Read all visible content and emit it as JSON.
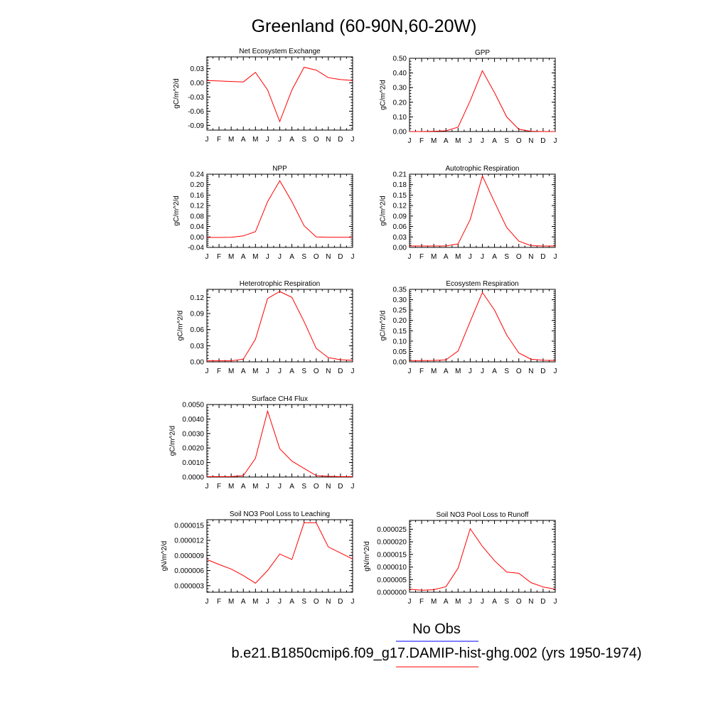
{
  "title": "Greenland (60-90N,60-20W)",
  "months": [
    "J",
    "F",
    "M",
    "A",
    "M",
    "J",
    "J",
    "A",
    "S",
    "O",
    "N",
    "D",
    "J"
  ],
  "legend": {
    "obs_label": "No Obs",
    "obs_color": "#0000ff",
    "model_label": "b.e21.B1850cmip6.f09_g17.DAMIP-hist-ghg.002 (yrs 1950-1974)",
    "model_color": "#ff0000"
  },
  "chart_data": [
    {
      "type": "line",
      "title": "Net Ecosystem Exchange",
      "ylabel": "gC/m^2/d",
      "ylim": [
        -0.1,
        0.055
      ],
      "yticks": [
        -0.09,
        -0.06,
        -0.03,
        0.0,
        0.03
      ],
      "ytick_labels": [
        "-0.09",
        "-0.06",
        "-0.03",
        "0.00",
        "0.03"
      ],
      "x": [
        "J",
        "F",
        "M",
        "A",
        "M",
        "J",
        "J",
        "A",
        "S",
        "O",
        "N",
        "D",
        "J"
      ],
      "series": [
        {
          "values": [
            0.005,
            0.004,
            0.003,
            0.002,
            0.022,
            -0.015,
            -0.082,
            -0.015,
            0.033,
            0.027,
            0.011,
            0.007,
            0.005
          ]
        }
      ]
    },
    {
      "type": "line",
      "title": "GPP",
      "ylabel": "gC/m^2/d",
      "ylim": [
        0.0,
        0.5
      ],
      "yticks": [
        0.0,
        0.1,
        0.2,
        0.3,
        0.4,
        0.5
      ],
      "ytick_labels": [
        "0.00",
        "0.10",
        "0.20",
        "0.30",
        "0.40",
        "0.50"
      ],
      "x": [
        "J",
        "F",
        "M",
        "A",
        "M",
        "J",
        "J",
        "A",
        "S",
        "O",
        "N",
        "D",
        "J"
      ],
      "series": [
        {
          "values": [
            0.0,
            0.0,
            0.002,
            0.005,
            0.03,
            0.21,
            0.415,
            0.265,
            0.1,
            0.015,
            0.002,
            0.0,
            0.0
          ]
        }
      ]
    },
    {
      "type": "line",
      "title": "NPP",
      "ylabel": "gC/m^2/d",
      "ylim": [
        -0.04,
        0.24
      ],
      "yticks": [
        -0.04,
        0.0,
        0.04,
        0.08,
        0.12,
        0.16,
        0.2,
        0.24
      ],
      "ytick_labels": [
        "-0.04",
        "0.00",
        "0.04",
        "0.08",
        "0.12",
        "0.16",
        "0.20",
        "0.24"
      ],
      "x": [
        "J",
        "F",
        "M",
        "A",
        "M",
        "J",
        "J",
        "A",
        "S",
        "O",
        "N",
        "D",
        "J"
      ],
      "series": [
        {
          "values": [
            -0.002,
            -0.002,
            -0.001,
            0.004,
            0.02,
            0.135,
            0.215,
            0.135,
            0.043,
            0.0,
            -0.001,
            -0.001,
            -0.001
          ]
        }
      ]
    },
    {
      "type": "line",
      "title": "Autotrophic Respiration",
      "ylabel": "gC/m^2/d",
      "ylim": [
        0.0,
        0.21
      ],
      "yticks": [
        0.0,
        0.03,
        0.06,
        0.09,
        0.12,
        0.15,
        0.18,
        0.21
      ],
      "ytick_labels": [
        "0.00",
        "0.03",
        "0.06",
        "0.09",
        "0.12",
        "0.15",
        "0.18",
        "0.21"
      ],
      "x": [
        "J",
        "F",
        "M",
        "A",
        "M",
        "J",
        "J",
        "A",
        "S",
        "O",
        "N",
        "D",
        "J"
      ],
      "series": [
        {
          "values": [
            0.004,
            0.004,
            0.004,
            0.004,
            0.01,
            0.08,
            0.205,
            0.13,
            0.057,
            0.018,
            0.005,
            0.004,
            0.004
          ]
        }
      ]
    },
    {
      "type": "line",
      "title": "Heterotrophic Respiration",
      "ylabel": "gC/m^2/d",
      "ylim": [
        0.0,
        0.135
      ],
      "yticks": [
        0.0,
        0.03,
        0.06,
        0.09,
        0.12
      ],
      "ytick_labels": [
        "0.00",
        "0.03",
        "0.06",
        "0.09",
        "0.12"
      ],
      "x": [
        "J",
        "F",
        "M",
        "A",
        "M",
        "J",
        "J",
        "A",
        "S",
        "O",
        "N",
        "D",
        "J"
      ],
      "series": [
        {
          "values": [
            0.002,
            0.002,
            0.002,
            0.005,
            0.042,
            0.118,
            0.131,
            0.12,
            0.075,
            0.025,
            0.008,
            0.004,
            0.003
          ]
        }
      ]
    },
    {
      "type": "line",
      "title": "Ecosystem Respiration",
      "ylabel": "gC/m^2/d",
      "ylim": [
        0.0,
        0.35
      ],
      "yticks": [
        0.0,
        0.05,
        0.1,
        0.15,
        0.2,
        0.25,
        0.3,
        0.35
      ],
      "ytick_labels": [
        "0.00",
        "0.05",
        "0.10",
        "0.15",
        "0.20",
        "0.25",
        "0.30",
        "0.35"
      ],
      "x": [
        "J",
        "F",
        "M",
        "A",
        "M",
        "J",
        "J",
        "A",
        "S",
        "O",
        "N",
        "D",
        "J"
      ],
      "series": [
        {
          "values": [
            0.006,
            0.006,
            0.007,
            0.01,
            0.052,
            0.195,
            0.335,
            0.25,
            0.13,
            0.043,
            0.013,
            0.008,
            0.007
          ]
        }
      ]
    },
    {
      "type": "line",
      "title": "Surface CH4 Flux",
      "ylabel": "gC/m^2/d",
      "ylim": [
        0.0,
        0.005
      ],
      "yticks": [
        0.0,
        0.001,
        0.002,
        0.003,
        0.004,
        0.005
      ],
      "ytick_labels": [
        "0.0000",
        "0.0010",
        "0.0020",
        "0.0030",
        "0.0040",
        "0.0050"
      ],
      "x": [
        "J",
        "F",
        "M",
        "A",
        "M",
        "J",
        "J",
        "A",
        "S",
        "O",
        "N",
        "D",
        "J"
      ],
      "series": [
        {
          "values": [
            3e-05,
            3e-05,
            3e-05,
            0.0001,
            0.0013,
            0.00455,
            0.00195,
            0.0011,
            0.0006,
            0.0001,
            5e-05,
            3e-05,
            3e-05
          ]
        }
      ]
    },
    {
      "type": "line",
      "title": "Soil NO3 Pool Loss to Leaching",
      "ylabel": "gN/m^2/d",
      "ylim": [
        1.7e-06,
        1.61e-05
      ],
      "yticks": [
        3e-06,
        6e-06,
        9e-06,
        1.2e-05,
        1.5e-05
      ],
      "ytick_labels": [
        "0.000003",
        "0.000006",
        "0.000009",
        "0.000012",
        "0.000015"
      ],
      "x": [
        "J",
        "F",
        "M",
        "A",
        "M",
        "J",
        "J",
        "A",
        "S",
        "O",
        "N",
        "D",
        "J"
      ],
      "series": [
        {
          "values": [
            8.2e-06,
            7.2e-06,
            6.3e-06,
            5e-06,
            3.5e-06,
            6e-06,
            9.3e-06,
            8.2e-06,
            1.55e-05,
            1.55e-05,
            1.07e-05,
            9.5e-06,
            8.3e-06
          ]
        }
      ]
    },
    {
      "type": "line",
      "title": "Soil NO3 Pool Loss to Runoff",
      "ylabel": "gN/m^2/d",
      "ylim": [
        0.0,
        2.85e-05
      ],
      "yticks": [
        0.0,
        5e-06,
        1e-05,
        1.5e-05,
        2e-05,
        2.5e-05
      ],
      "ytick_labels": [
        "0.000000",
        "0.000005",
        "0.000010",
        "0.000015",
        "0.000020",
        "0.000025"
      ],
      "x": [
        "J",
        "F",
        "M",
        "A",
        "M",
        "J",
        "J",
        "A",
        "S",
        "O",
        "N",
        "D",
        "J"
      ],
      "series": [
        {
          "values": [
            1.2e-06,
            8e-07,
            1e-06,
            2.2e-06,
            9.5e-06,
            2.52e-05,
            1.82e-05,
            1.25e-05,
            8e-06,
            7.5e-06,
            3.8e-06,
            2.1e-06,
            1.2e-06
          ]
        }
      ]
    }
  ]
}
